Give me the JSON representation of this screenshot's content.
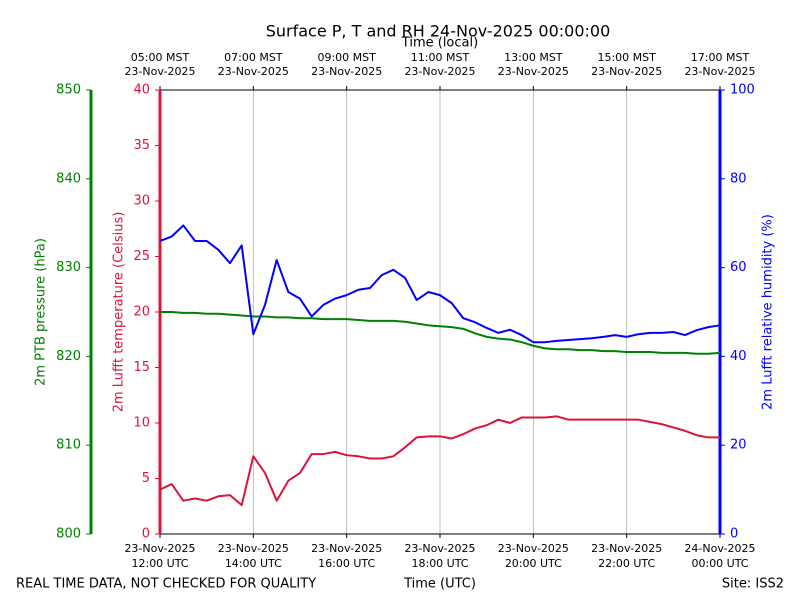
{
  "chart_data": {
    "type": "line",
    "title": "Surface P, T and RH 24-Nov-2025 00:00:00",
    "xlabel": "Time (UTC)",
    "x2label": "Time (local)",
    "footer_left": "REAL TIME DATA, NOT CHECKED FOR QUALITY",
    "footer_right": "Site: ISS2",
    "ylabel": "2m Lufft temperature (Celsius)",
    "y2label": "2m Lufft relative humidity (%)",
    "y3label": "2m PTB pressure (hPa)",
    "grid": true,
    "xlim": [
      "2025-11-23T12:00",
      "2025-11-24T00:00"
    ],
    "xticks": [
      {
        "value": "2025-11-23T12:00",
        "label": [
          "23-Nov-2025",
          "12:00 UTC"
        ]
      },
      {
        "value": "2025-11-23T14:00",
        "label": [
          "23-Nov-2025",
          "14:00 UTC"
        ]
      },
      {
        "value": "2025-11-23T16:00",
        "label": [
          "23-Nov-2025",
          "16:00 UTC"
        ]
      },
      {
        "value": "2025-11-23T18:00",
        "label": [
          "23-Nov-2025",
          "18:00 UTC"
        ]
      },
      {
        "value": "2025-11-23T20:00",
        "label": [
          "23-Nov-2025",
          "20:00 UTC"
        ]
      },
      {
        "value": "2025-11-23T22:00",
        "label": [
          "23-Nov-2025",
          "22:00 UTC"
        ]
      },
      {
        "value": "2025-11-24T00:00",
        "label": [
          "24-Nov-2025",
          "00:00 UTC"
        ]
      }
    ],
    "x2ticks": [
      {
        "value": "2025-11-23T12:00",
        "label": [
          "05:00 MST",
          "23-Nov-2025"
        ]
      },
      {
        "value": "2025-11-23T14:00",
        "label": [
          "07:00 MST",
          "23-Nov-2025"
        ]
      },
      {
        "value": "2025-11-23T16:00",
        "label": [
          "09:00 MST",
          "23-Nov-2025"
        ]
      },
      {
        "value": "2025-11-23T18:00",
        "label": [
          "11:00 MST",
          "23-Nov-2025"
        ]
      },
      {
        "value": "2025-11-23T20:00",
        "label": [
          "13:00 MST",
          "23-Nov-2025"
        ]
      },
      {
        "value": "2025-11-23T22:00",
        "label": [
          "15:00 MST",
          "23-Nov-2025"
        ]
      },
      {
        "value": "2025-11-24T00:00",
        "label": [
          "17:00 MST",
          "23-Nov-2025"
        ]
      }
    ],
    "ylim": [
      0,
      40
    ],
    "yticks": [
      0,
      5,
      10,
      15,
      20,
      25,
      30,
      35,
      40
    ],
    "ycolor": "#dc143c",
    "y2lim": [
      0,
      100
    ],
    "y2ticks": [
      0,
      20,
      40,
      60,
      80,
      100
    ],
    "y2color": "#0000ff",
    "y3lim": [
      800,
      850
    ],
    "y3ticks": [
      800,
      810,
      820,
      830,
      840,
      850
    ],
    "y3color": "#008000",
    "x": [
      "2025-11-23T12:00",
      "2025-11-23T12:15",
      "2025-11-23T12:30",
      "2025-11-23T12:45",
      "2025-11-23T13:00",
      "2025-11-23T13:15",
      "2025-11-23T13:30",
      "2025-11-23T13:45",
      "2025-11-23T14:00",
      "2025-11-23T14:15",
      "2025-11-23T14:30",
      "2025-11-23T14:45",
      "2025-11-23T15:00",
      "2025-11-23T15:15",
      "2025-11-23T15:30",
      "2025-11-23T15:45",
      "2025-11-23T16:00",
      "2025-11-23T16:15",
      "2025-11-23T16:30",
      "2025-11-23T16:45",
      "2025-11-23T17:00",
      "2025-11-23T17:15",
      "2025-11-23T17:30",
      "2025-11-23T17:45",
      "2025-11-23T18:00",
      "2025-11-23T18:15",
      "2025-11-23T18:30",
      "2025-11-23T18:45",
      "2025-11-23T19:00",
      "2025-11-23T19:15",
      "2025-11-23T19:30",
      "2025-11-23T19:45",
      "2025-11-23T20:00",
      "2025-11-23T20:15",
      "2025-11-23T20:30",
      "2025-11-23T20:45",
      "2025-11-23T21:00",
      "2025-11-23T21:15",
      "2025-11-23T21:30",
      "2025-11-23T21:45",
      "2025-11-23T22:00",
      "2025-11-23T22:15",
      "2025-11-23T22:30",
      "2025-11-23T22:45",
      "2025-11-23T23:00",
      "2025-11-23T23:15",
      "2025-11-23T23:30",
      "2025-11-23T23:45",
      "2025-11-24T00:00"
    ],
    "series": [
      {
        "axis": "y3",
        "color": "#008000",
        "values": [
          825.0,
          825.0,
          824.9,
          824.9,
          824.8,
          824.8,
          824.7,
          824.6,
          824.5,
          824.5,
          824.4,
          824.4,
          824.3,
          824.3,
          824.2,
          824.2,
          824.2,
          824.1,
          824.0,
          824.0,
          824.0,
          823.9,
          823.7,
          823.5,
          823.4,
          823.3,
          823.1,
          822.6,
          822.2,
          822.0,
          821.9,
          821.6,
          821.2,
          820.9,
          820.8,
          820.8,
          820.7,
          820.7,
          820.6,
          820.6,
          820.5,
          820.5,
          820.5,
          820.4,
          820.4,
          820.4,
          820.3,
          820.3,
          820.4
        ]
      },
      {
        "axis": "y2",
        "color": "#0000ff",
        "values": [
          66,
          67,
          69.5,
          66,
          66,
          64,
          61,
          65,
          45,
          51.6,
          61.7,
          54.5,
          53,
          49,
          51.6,
          53,
          53.8,
          55,
          55.4,
          58.3,
          59.5,
          57.7,
          52.7,
          54.5,
          53.8,
          52,
          48.6,
          47.7,
          46.4,
          45.3,
          46,
          44.8,
          43.2,
          43.2,
          43.5,
          43.7,
          43.9,
          44.1,
          44.4,
          44.8,
          44.4,
          45,
          45.3,
          45.3,
          45.5,
          44.8,
          45.9,
          46.6,
          47
        ]
      },
      {
        "axis": "y",
        "color": "#dc143c",
        "values": [
          4.0,
          4.5,
          3.0,
          3.2,
          3.0,
          3.4,
          3.5,
          2.6,
          7.0,
          5.5,
          3.0,
          4.8,
          5.5,
          7.2,
          7.2,
          7.4,
          7.1,
          7.0,
          6.8,
          6.8,
          7.0,
          7.8,
          8.7,
          8.8,
          8.8,
          8.6,
          9.0,
          9.5,
          9.8,
          10.3,
          10.0,
          10.5,
          10.5,
          10.5,
          10.6,
          10.3,
          10.3,
          10.3,
          10.3,
          10.3,
          10.3,
          10.3,
          10.1,
          9.9,
          9.6,
          9.3,
          8.9,
          8.7,
          8.7
        ]
      }
    ]
  }
}
